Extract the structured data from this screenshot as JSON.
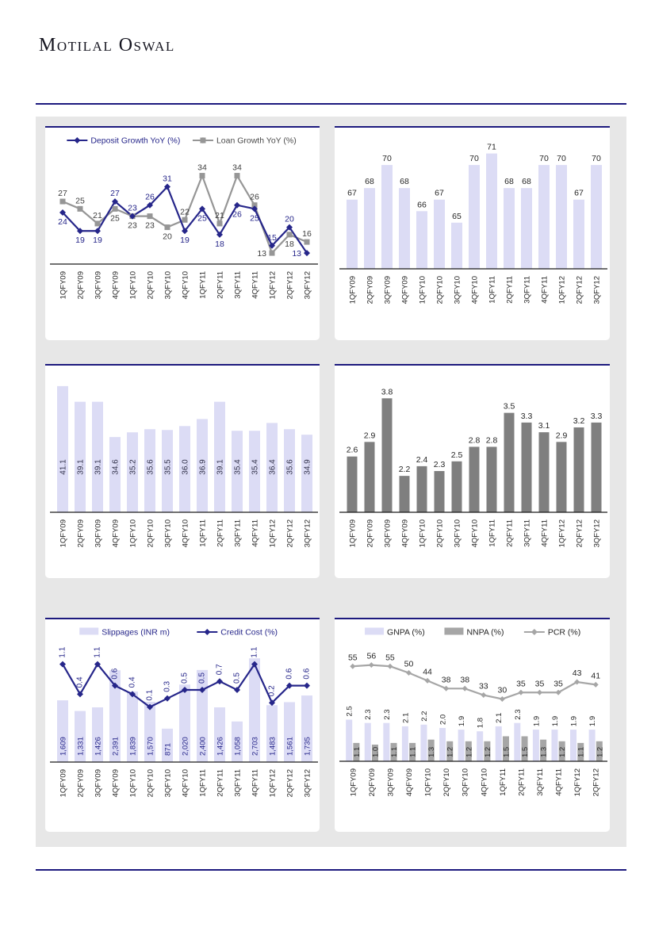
{
  "page": {
    "brand": "Motilal Oswal",
    "background": "#FFFFFF",
    "panel_background": "#E7E7E7",
    "rule_color": "#1D1A7E"
  },
  "chart_data": [
    {
      "type": "line",
      "position": "top-left",
      "categories": [
        "1QFY09",
        "2QFY09",
        "3QFY09",
        "4QFY09",
        "1QFY10",
        "2QFY10",
        "3QFY10",
        "4QFY10",
        "1QFY11",
        "2QFY11",
        "3QFY11",
        "4QFY11",
        "1QFY12",
        "2QFY12",
        "3QFY12"
      ],
      "series": [
        {
          "name": "Deposit Growth YoY (%)",
          "values": [
            24,
            19,
            19,
            27,
            23,
            26,
            31,
            19,
            25,
            18,
            26,
            25,
            15,
            20,
            13
          ],
          "color": "#26268A",
          "marker": "diamond",
          "label_color": "#26268A"
        },
        {
          "name": "Loan Growth YoY (%)",
          "values": [
            27,
            25,
            21,
            25,
            23,
            23,
            20,
            22,
            34,
            21,
            34,
            26,
            13,
            18,
            16
          ],
          "color": "#969696",
          "marker": "square",
          "label_color": "#3d3d3d"
        }
      ],
      "ylim": [
        10,
        38
      ],
      "legend_position": "top",
      "grid": false,
      "decimals": 0
    },
    {
      "type": "bar",
      "position": "top-right",
      "categories": [
        "1QFY09",
        "2QFY09",
        "3QFY09",
        "4QFY09",
        "1QFY10",
        "2QFY10",
        "3QFY10",
        "4QFY10",
        "1QFY11",
        "2QFY11",
        "3QFY11",
        "4QFY11",
        "1QFY12",
        "2QFY12",
        "3QFY12"
      ],
      "values": [
        67,
        68,
        70,
        68,
        66,
        67,
        65,
        70,
        71,
        68,
        68,
        70,
        70,
        67,
        70
      ],
      "bar_color": "#DCDCF5",
      "label_color": "#262626",
      "ylim": [
        61,
        72
      ],
      "decimals": 0,
      "value_labels": "above",
      "grid": false
    },
    {
      "type": "bar",
      "position": "middle-left",
      "categories": [
        "1QFY09",
        "2QFY09",
        "3QFY09",
        "4QFY09",
        "1QFY10",
        "2QFY10",
        "3QFY10",
        "4QFY10",
        "1QFY11",
        "2QFY11",
        "3QFY11",
        "4QFY11",
        "1QFY12",
        "2QFY12",
        "3QFY12"
      ],
      "values": [
        41.1,
        39.1,
        39.1,
        34.6,
        35.2,
        35.6,
        35.5,
        36.0,
        36.9,
        39.1,
        35.4,
        35.4,
        36.4,
        35.6,
        34.9
      ],
      "bar_color": "#DCDCF5",
      "label_color": "#31314a",
      "ylim": [
        25,
        42
      ],
      "decimals": 1,
      "value_labels": "inside-rotated",
      "grid": false
    },
    {
      "type": "bar",
      "position": "middle-right",
      "categories": [
        "1QFY09",
        "2QFY09",
        "3QFY09",
        "4QFY09",
        "1QFY10",
        "2QFY10",
        "3QFY10",
        "4QFY10",
        "1QFY11",
        "2QFY11",
        "3QFY11",
        "4QFY11",
        "1QFY12",
        "2QFY12",
        "3QFY12"
      ],
      "values": [
        2.6,
        2.9,
        3.8,
        2.2,
        2.4,
        2.3,
        2.5,
        2.8,
        2.8,
        3.5,
        3.3,
        3.1,
        2.9,
        3.2,
        3.3
      ],
      "bar_color": "#7F7F7F",
      "label_color": "#262626",
      "ylim": [
        1.45,
        4.05
      ],
      "decimals": 1,
      "value_labels": "above",
      "grid": false
    },
    {
      "type": "bar-line-combo",
      "position": "bottom-left",
      "categories": [
        "1QFY09",
        "2QFY09",
        "3QFY09",
        "4QFY09",
        "1QFY10",
        "2QFY10",
        "3QFY10",
        "4QFY10",
        "1QFY11",
        "2QFY11",
        "3QFY11",
        "4QFY11",
        "1QFY12",
        "2QFY12",
        "3QFY12"
      ],
      "series": [
        {
          "name": "Slippages (INR m)",
          "chart": "bar",
          "values": [
            1609,
            1331,
            1426,
            2391,
            1839,
            1570,
            871,
            2020,
            2400,
            1426,
            1058,
            2703,
            1483,
            1561,
            1735
          ],
          "color": "#DCDCF5",
          "label_color": "#26268A",
          "format": "thousands"
        },
        {
          "name": "Credit Cost (%)",
          "chart": "line",
          "values": [
            1.1,
            0.4,
            1.1,
            0.6,
            0.4,
            0.1,
            0.3,
            0.5,
            0.5,
            0.7,
            0.5,
            1.1,
            0.2,
            0.6,
            0.6
          ],
          "color": "#26268A",
          "marker": "diamond",
          "label_color": "#26268A",
          "decimals": 1
        }
      ],
      "legend_position": "top",
      "grid": false
    },
    {
      "type": "bar-line-combo",
      "position": "bottom-right",
      "categories": [
        "1QFY09",
        "2QFY09",
        "3QFY09",
        "4QFY09",
        "1QFY10",
        "2QFY10",
        "3QFY10",
        "4QFY10",
        "1QFY11",
        "2QFY11",
        "3QFY11",
        "4QFY11",
        "1QFY12",
        "2QFY12"
      ],
      "series": [
        {
          "name": "GNPA (%)",
          "chart": "bar",
          "values": [
            2.5,
            2.3,
            2.3,
            2.1,
            2.2,
            2.0,
            1.9,
            1.8,
            2.1,
            2.3,
            1.9,
            1.9,
            1.9,
            1.9
          ],
          "color": "#DCDCF5",
          "label_color": "#262626",
          "decimals": 1
        },
        {
          "name": "NNPA (%)",
          "chart": "bar",
          "values": [
            1.1,
            1.0,
            1.1,
            1.1,
            1.3,
            1.2,
            1.2,
            1.2,
            1.5,
            1.5,
            1.3,
            1.2,
            1.1,
            1.2
          ],
          "color": "#A6A6A6",
          "label_color": "#262626",
          "decimals": 1
        },
        {
          "name": "PCR (%)",
          "chart": "line",
          "values": [
            55,
            56,
            55,
            50,
            44,
            38,
            38,
            33,
            30,
            35,
            35,
            35,
            43,
            41
          ],
          "color": "#A6A6A6",
          "marker": "diamond",
          "label_color": "#262626",
          "decimals": 0
        }
      ],
      "legend_position": "top",
      "grid": false
    }
  ]
}
